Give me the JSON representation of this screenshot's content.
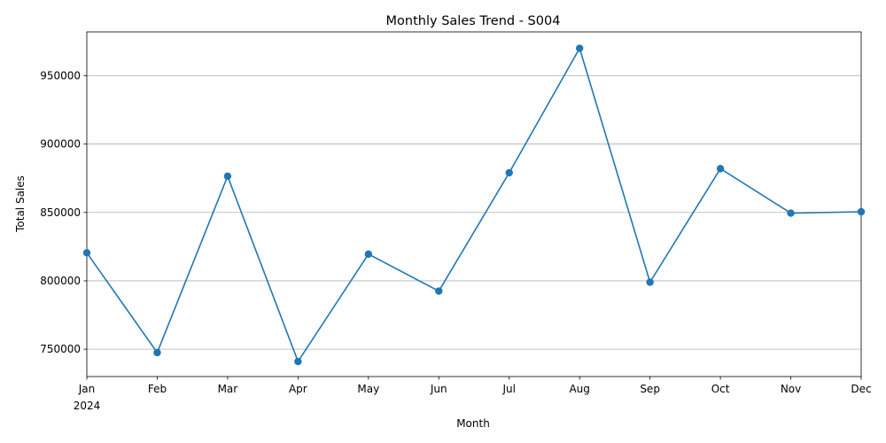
{
  "chart_data": {
    "type": "line",
    "title": "Monthly Sales Trend - S004",
    "xlabel": "Month",
    "ylabel": "Total Sales",
    "categories": [
      "Jan",
      "Feb",
      "Mar",
      "Apr",
      "May",
      "Jun",
      "Jul",
      "Aug",
      "Sep",
      "Oct",
      "Nov",
      "Dec"
    ],
    "year_label": "2024",
    "series": [
      {
        "values": [
          820500,
          747500,
          876500,
          741000,
          819500,
          792500,
          879000,
          970000,
          799000,
          882000,
          849500,
          850500
        ]
      }
    ],
    "ylim": [
      730000,
      982000
    ],
    "yticks": [
      750000,
      800000,
      850000,
      900000,
      950000
    ],
    "ytick_labels": [
      "750000",
      "800000",
      "850000",
      "900000",
      "950000"
    ],
    "grid": "horizontal",
    "line_color": "#1f77b4"
  }
}
